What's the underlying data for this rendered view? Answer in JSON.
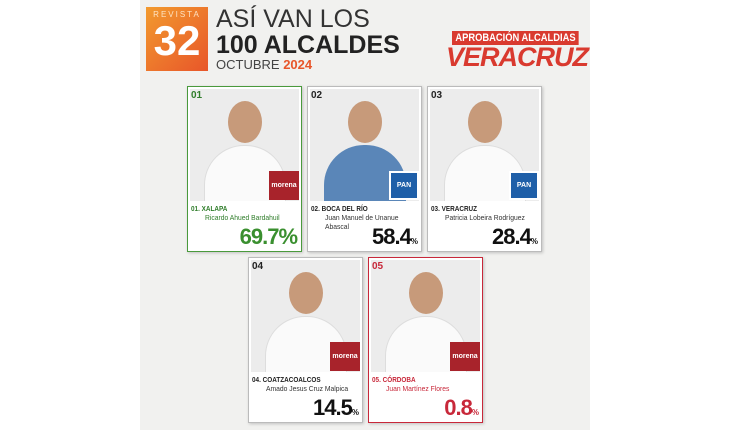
{
  "header": {
    "logo_top": "REVISTA",
    "logo_number": "32",
    "title_line1": "ASÍ VAN LOS",
    "title_line2": "100 ALCALDES",
    "month": "OCTUBRE",
    "year": "2024",
    "badge": "APROBACIÓN ALCALDIAS",
    "state": "VERACRUZ"
  },
  "cards": [
    {
      "rank": "01",
      "city": "01. XALAPA",
      "name": "Ricardo Ahued Bardahuil",
      "value": "69.7",
      "unit": "%",
      "party": "morena",
      "accent": "#3a8f2f"
    },
    {
      "rank": "02",
      "city": "02. BOCA DEL RÍO",
      "name": "Juan Manuel de Unanue Abascal",
      "value": "58.4",
      "unit": "%",
      "party": "PAN",
      "accent": "#111111"
    },
    {
      "rank": "03",
      "city": "03. VERACRUZ",
      "name": "Patricia Lobeira Rodríguez",
      "value": "28.4",
      "unit": "%",
      "party": "PAN",
      "accent": "#111111"
    },
    {
      "rank": "04",
      "city": "04. COATZACOALCOS",
      "name": "Amado Jesus Cruz Malpica",
      "value": "14.5",
      "unit": "%",
      "party": "morena",
      "accent": "#111111"
    },
    {
      "rank": "05",
      "city": "05. CÓRDOBA",
      "name": "Juan Martínez Flores",
      "value": "0.8",
      "unit": "%",
      "party": "morena",
      "accent": "#c8283a"
    }
  ]
}
